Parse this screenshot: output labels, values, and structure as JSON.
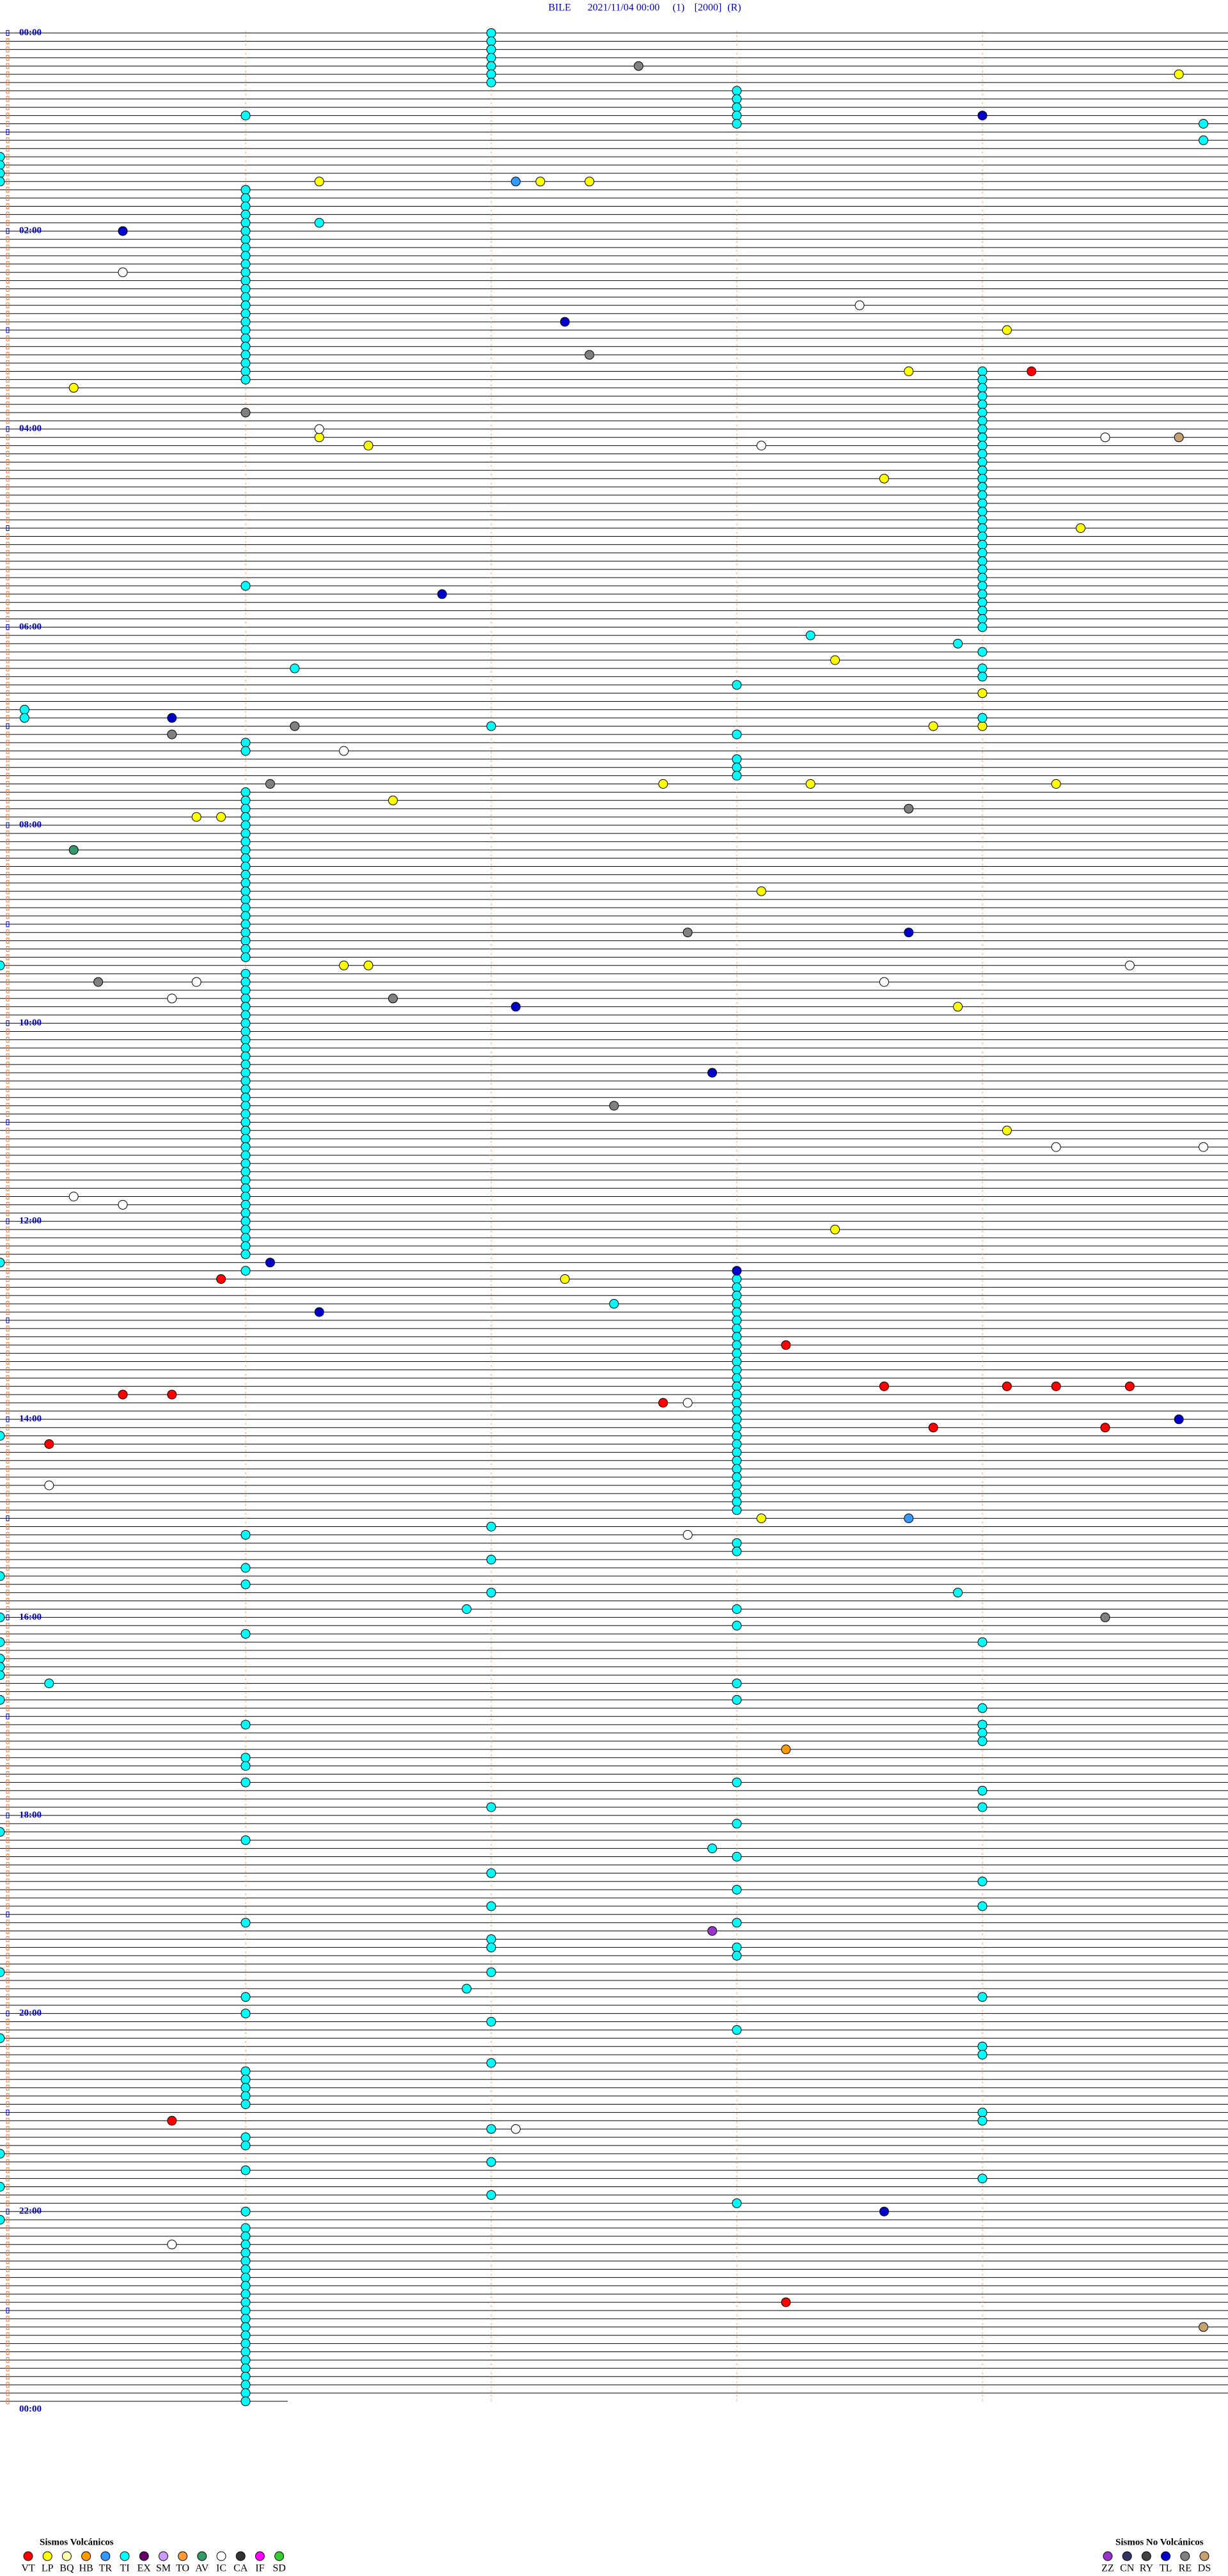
{
  "header": {
    "station": "BILE",
    "datetime": "2021/11/04 00:00",
    "channel": "(1)",
    "scale": "[2000]",
    "mode": "(R)"
  },
  "time_labels": [
    "00:00",
    "02:00",
    "04:00",
    "06:00",
    "08:00",
    "10:00",
    "12:00",
    "14:00",
    "16:00",
    "18:00",
    "20:00",
    "22:00",
    "00:00"
  ],
  "legend_groups": [
    {
      "title": "Sismos Volcánicos",
      "series": [
        {
          "name": "VT",
          "color": "#ff0000",
          "minutes": [
            209.2,
            755.9,
            798.2,
            823.6,
            824.1,
            824.3,
            824.6,
            825.5,
            825.7,
            832.7,
            848.8,
            849.5,
            855.2,
            1265.7,
            1378.2
          ]
        },
        {
          "name": "LP",
          "color": "#ffff00",
          "minutes": [
            29.8,
            91.3,
            92.2,
            92.4,
            184.1,
            208.7,
            215.3,
            246.3,
            251.5,
            273.6,
            304.4,
            383.4,
            404,
            423.8,
            424,
            457.7,
            458.3,
            459.3,
            466.6,
            475.8,
            475.9,
            523.1,
            566.4,
            566.5,
            593.9,
            669.1,
            728.4,
            757.3,
            903.1
          ]
        },
        {
          "name": "BQ",
          "color": "#ffffb0",
          "minutes": []
        },
        {
          "name": "HB",
          "color": "#ff9900",
          "minutes": [
            1043.2
          ]
        },
        {
          "name": "TR",
          "color": "#3399ff",
          "minutes": [
            92.1,
            903.7
          ]
        },
        {
          "name": "TI",
          "color": "#00ffff",
          "minutes": [
            2,
            7,
            12,
            17,
            22,
            27,
            32,
            38,
            43,
            48,
            51,
            53,
            58,
            59.9,
            69.9,
            75,
            80,
            85,
            90,
            96,
            101,
            106,
            111,
            116,
            116.3,
            121,
            126,
            131,
            136,
            141,
            146,
            151,
            156,
            161,
            166,
            171,
            176,
            181,
            186,
            191,
            196,
            201,
            206,
            209,
            211,
            214,
            219,
            224,
            229,
            234,
            239,
            244,
            249,
            254,
            259,
            264,
            269,
            274,
            279,
            284,
            289,
            294,
            299,
            304,
            309,
            314,
            319,
            324,
            329,
            334,
            336,
            339,
            344,
            349,
            354,
            359,
            364,
            368.3,
            373.9,
            379,
            386.2,
            389,
            394,
            398,
            410.1,
            415.1,
            419,
            422,
            428,
            431,
            436,
            443,
            448,
            453,
            461,
            466,
            471,
            476,
            481,
            486,
            491,
            496,
            501,
            506,
            511,
            516,
            521,
            526,
            531,
            536,
            541,
            546,
            551,
            556,
            561,
            565,
            571,
            576,
            581,
            586,
            591,
            596,
            601,
            606,
            611,
            616,
            621,
            626,
            631,
            636,
            641,
            646,
            651,
            656,
            661,
            666,
            671,
            676,
            681,
            686,
            691,
            696,
            701,
            706,
            711,
            716,
            721,
            726,
            731,
            736,
            741,
            745,
            751,
            758,
            763,
            768,
            772.5,
            773,
            778,
            783,
            788,
            793,
            798,
            803,
            808,
            813,
            818,
            823,
            828,
            833,
            838,
            843,
            848,
            850,
            853,
            858,
            863,
            868,
            873,
            878,
            883,
            888,
            893,
            898,
            907,
            911,
            918,
            923,
            927,
            931,
            935,
            941,
            947,
            948.9,
            956.9,
            958,
            960,
            968,
            971,
            975,
            979,
            985,
            990,
            995,
            1000.2,
            1003,
            1010,
            1013,
            1019,
            1026,
            1029,
            1034,
            1039,
            1046,
            1051,
            1061,
            1063,
            1069,
            1077,
            1079,
            1088,
            1090,
            1096,
            1102.9,
            1108,
            1117,
            1124,
            1128,
            1137,
            1139,
            1146,
            1148,
            1157,
            1162,
            1163,
            1168,
            1175,
            1177,
            1186.9,
            1191,
            1194,
            1201,
            1207,
            1213,
            1215,
            1224,
            1229,
            1232,
            1236,
            1241,
            1246,
            1251,
            1256,
            1264,
            1269,
            1272,
            1276,
            1281,
            1285,
            1292,
            1296,
            1304,
            1305,
            1312,
            1318,
            1321,
            1325,
            1331,
            1336,
            1341,
            1346,
            1351,
            1356,
            1361,
            1366,
            1371,
            1376,
            1381,
            1386,
            1391,
            1396,
            1401,
            1406,
            1411,
            1416,
            1421,
            1426,
            1431,
            1436
          ]
        },
        {
          "name": "EX",
          "color": "#660066",
          "minutes": []
        },
        {
          "name": "SM",
          "color": "#cc99ff",
          "minutes": []
        },
        {
          "name": "TO",
          "color": "#ff9933",
          "minutes": []
        },
        {
          "name": "AV",
          "color": "#339966",
          "minutes": [
            495.3
          ]
        },
        {
          "name": "IC",
          "color": "#ffffff",
          "minutes": [
            145.5,
            168.5,
            241.3,
            249.5,
            253.1,
            436.4,
            569.6,
            575.8,
            578.6,
            585.7,
            679.3,
            679.9,
            705.3,
            710.5,
            832.8,
            880.2,
            912.8,
            1272.1,
            1340.7
          ]
        },
        {
          "name": "CA",
          "color": "#333333",
          "minutes": []
        },
        {
          "name": "IF",
          "color": "#ff00ff",
          "minutes": []
        },
        {
          "name": "SD",
          "color": "#33cc33",
          "minutes": []
        }
      ]
    },
    {
      "title": "Sismos No Volcánicos",
      "series": [
        {
          "name": "ZZ",
          "color": "#9933cc",
          "minutes": [
            1152.9
          ]
        },
        {
          "name": "CN",
          "color": "#333366",
          "minutes": []
        },
        {
          "name": "RY",
          "color": "#444444",
          "minutes": []
        },
        {
          "name": "TL",
          "color": "#0000cc",
          "minutes": [
            54,
            120.5,
            177.3,
            341.8,
            415.7,
            548.7,
            592.1,
            632.9,
            746.1,
            753,
            776.3,
            844.8,
            1323.6
          ]
        },
        {
          "name": "RE",
          "color": "#808080",
          "minutes": [
            22.6,
            197.4,
            231,
            421.2,
            425.7,
            456.1,
            473.7,
            547.8,
            575.4,
            586.6,
            652.5,
            964.5
          ]
        },
        {
          "name": "DS",
          "color": "#c8a070",
          "minutes": [
            249.8,
            1394.9
          ]
        }
      ]
    }
  ]
}
